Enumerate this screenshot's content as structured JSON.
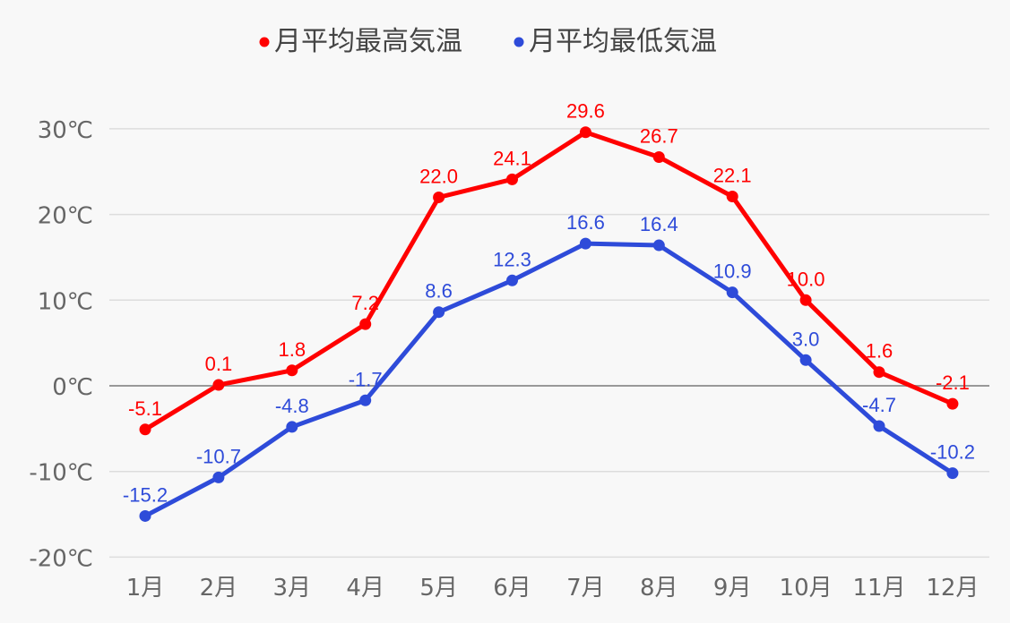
{
  "chart_data": {
    "type": "line",
    "title": "",
    "xlabel": "",
    "ylabel": "",
    "categories": [
      "1月",
      "2月",
      "3月",
      "4月",
      "5月",
      "6月",
      "7月",
      "8月",
      "9月",
      "10月",
      "11月",
      "12月"
    ],
    "y_ticks": [
      "30℃",
      "20℃",
      "10℃",
      "0℃",
      "-10℃",
      "-20℃"
    ],
    "y_tick_values": [
      30,
      20,
      10,
      0,
      -10,
      -20
    ],
    "ylim": [
      -20,
      30
    ],
    "grid": true,
    "legend_position": "top-center",
    "series": [
      {
        "name": "月平均最高気温",
        "color": "#ff0000",
        "values": [
          -5.1,
          0.1,
          1.8,
          7.2,
          22.0,
          24.1,
          29.6,
          26.7,
          22.1,
          10.0,
          1.6,
          -2.1
        ],
        "labels": [
          "-5.1",
          "0.1",
          "1.8",
          "7.2",
          "22.0",
          "24.1",
          "29.6",
          "26.7",
          "22.1",
          "10.0",
          "1.6",
          "-2.1"
        ]
      },
      {
        "name": "月平均最低気温",
        "color": "#2e4bd9",
        "values": [
          -15.2,
          -10.7,
          -4.8,
          -1.7,
          8.6,
          12.3,
          16.6,
          16.4,
          10.9,
          3.0,
          -4.7,
          -10.2
        ],
        "labels": [
          "-15.2",
          "-10.7",
          "-4.8",
          "-1.7",
          "8.6",
          "12.3",
          "16.6",
          "16.4",
          "10.9",
          "3.0",
          "-4.7",
          "-10.2"
        ]
      }
    ]
  }
}
